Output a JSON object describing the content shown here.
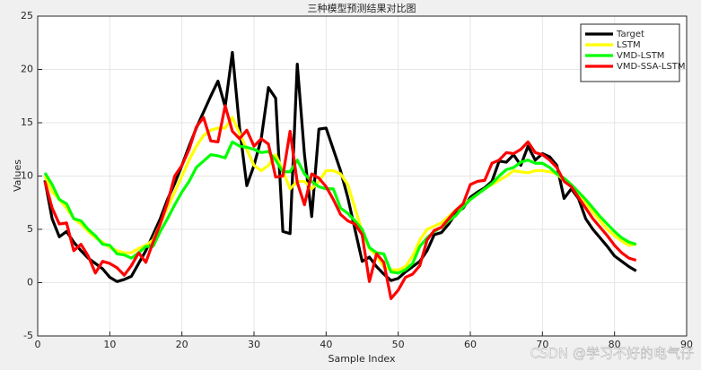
{
  "chart_data": {
    "type": "line",
    "title": "三种模型预测结果对比图",
    "x_label": "Sample Index",
    "y_label": "Values",
    "x": [
      1,
      2,
      3,
      4,
      5,
      6,
      7,
      8,
      9,
      10,
      11,
      12,
      13,
      14,
      15,
      16,
      17,
      18,
      19,
      20,
      21,
      22,
      23,
      24,
      25,
      26,
      27,
      28,
      29,
      30,
      31,
      32,
      33,
      34,
      35,
      36,
      37,
      38,
      39,
      40,
      41,
      42,
      43,
      44,
      45,
      46,
      47,
      48,
      49,
      50,
      51,
      52,
      53,
      54,
      55,
      56,
      57,
      58,
      59,
      60,
      61,
      62,
      63,
      64,
      65,
      66,
      67,
      68,
      69,
      70,
      71,
      72,
      73,
      74,
      75,
      76,
      77,
      78,
      79,
      80,
      81,
      82,
      83
    ],
    "series": [
      {
        "name": "Target",
        "color": "#000000",
        "values": [
          9.6,
          6,
          4.3,
          4.8,
          3.8,
          3,
          2.3,
          1.8,
          1.3,
          0.5,
          0.1,
          0.3,
          0.6,
          1.8,
          3,
          4.5,
          6,
          7.8,
          9.3,
          11,
          12.8,
          14.5,
          16,
          17.5,
          18.9,
          16.5,
          21.6,
          14.5,
          9.1,
          11,
          13.5,
          18.3,
          17.3,
          4.8,
          4.6,
          20.5,
          12,
          6.2,
          14.4,
          14.5,
          12.5,
          10.5,
          8,
          5,
          2,
          2.4,
          1.5,
          0.8,
          0.2,
          0.4,
          1,
          1.5,
          2,
          3,
          4.5,
          4.7,
          5.5,
          6.5,
          7,
          8,
          8.5,
          8.9,
          9.5,
          11.4,
          11.3,
          12,
          11,
          12.8,
          11.5,
          12.1,
          11.8,
          11,
          7.9,
          8.8,
          7.9,
          6,
          5,
          4.2,
          3.4,
          2.5,
          2,
          1.5,
          1.1
        ]
      },
      {
        "name": "LSTM",
        "color": "#ffff00",
        "values": [
          10,
          8.5,
          7.8,
          7,
          6,
          5.5,
          4.8,
          4.2,
          3.8,
          3.3,
          3,
          2.8,
          2.8,
          3.2,
          3.5,
          4,
          5.5,
          7,
          8.5,
          10,
          11.5,
          12.8,
          13.8,
          14.3,
          14.5,
          14.5,
          15.5,
          14,
          12.5,
          11,
          10.5,
          11,
          12,
          10.5,
          8.8,
          9.5,
          9.5,
          8.8,
          9.5,
          10.5,
          10.5,
          10.2,
          9.2,
          7,
          4.8,
          3.2,
          2.5,
          1.5,
          1.2,
          1.2,
          1.5,
          2.5,
          4,
          5,
          5.3,
          5.6,
          6.2,
          6.8,
          7.3,
          7.8,
          8.3,
          8.8,
          9.2,
          9.6,
          10,
          10.5,
          10.4,
          10.3,
          10.5,
          10.5,
          10.4,
          10.2,
          9.6,
          9,
          8.5,
          7.5,
          6.6,
          5.8,
          5,
          4.4,
          3.9,
          3.5,
          3.6
        ]
      },
      {
        "name": "VMD-LSTM",
        "color": "#00ff00",
        "values": [
          10.3,
          9.2,
          7.8,
          7.4,
          6,
          5.8,
          5,
          4.4,
          3.6,
          3.5,
          2.7,
          2.6,
          2.3,
          2.8,
          3.4,
          3.4,
          4.8,
          6,
          7.3,
          8.5,
          9.5,
          10.8,
          11.4,
          12,
          11.9,
          11.7,
          13.2,
          12.8,
          12.7,
          12.5,
          12.2,
          12.3,
          11.5,
          10.4,
          10.4,
          11.5,
          10.2,
          9.5,
          9,
          8.8,
          8.8,
          7,
          6.5,
          5.8,
          5,
          3.3,
          2.8,
          2.7,
          1,
          0.9,
          1.2,
          1.8,
          3.4,
          4.2,
          4.8,
          5.2,
          5.8,
          6.3,
          7.1,
          7.8,
          8.3,
          8.8,
          9.3,
          10,
          10.6,
          10.8,
          11.3,
          11.5,
          11.2,
          11.2,
          10.8,
          10.2,
          9.8,
          9.2,
          8.5,
          7.8,
          7,
          6.2,
          5.5,
          4.8,
          4.2,
          3.8,
          3.6
        ]
      },
      {
        "name": "VMD-SSA-LSTM",
        "color": "#ff0000",
        "values": [
          9.5,
          7,
          5.5,
          5.6,
          3,
          3.6,
          2.5,
          0.9,
          2,
          1.8,
          1.4,
          0.7,
          1.6,
          2.8,
          1.9,
          3.8,
          5.5,
          7.5,
          10,
          11,
          12.5,
          14.6,
          15.5,
          13.3,
          13.2,
          16.6,
          14.2,
          13.5,
          14.3,
          12.8,
          13.5,
          13,
          9.9,
          10,
          14.2,
          9.4,
          7.3,
          10.2,
          9.8,
          9,
          7.8,
          6.4,
          5.8,
          5.5,
          4.5,
          0.1,
          2.7,
          1.9,
          -1.5,
          -0.7,
          0.5,
          0.8,
          1.6,
          4,
          4.9,
          5.2,
          6,
          6.8,
          7.4,
          9.2,
          9.5,
          9.6,
          11.2,
          11.5,
          12.2,
          12.1,
          12.5,
          13.2,
          12.2,
          12,
          11.5,
          10.8,
          9.5,
          9,
          8,
          7,
          6,
          5.2,
          4.4,
          3.5,
          2.8,
          2.3,
          2.1
        ]
      }
    ],
    "xlim": [
      0,
      90
    ],
    "xticks": [
      0,
      10,
      20,
      30,
      40,
      50,
      60,
      70,
      80,
      90
    ],
    "ylim": [
      -5,
      25
    ],
    "yticks": [
      -5,
      0,
      5,
      10,
      15,
      20,
      25
    ],
    "grid": true,
    "legend": "northeast"
  },
  "watermark": "CSDN @学习不好的电气仔"
}
